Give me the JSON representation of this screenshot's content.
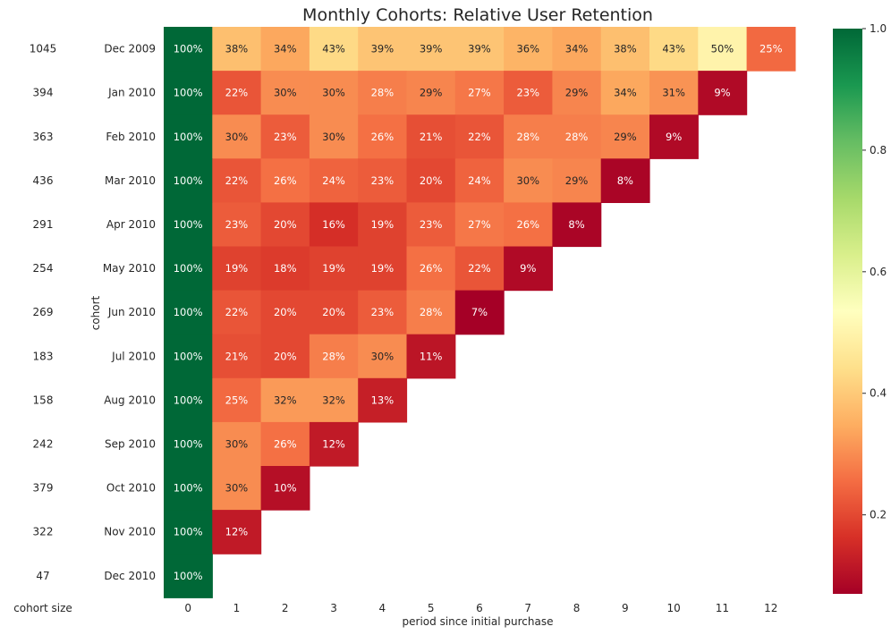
{
  "chart_data": {
    "type": "heatmap",
    "title": "Monthly Cohorts: Relative User Retention",
    "xlabel": "period since initial purchase",
    "ylabel": "cohort",
    "side_table_header": "cohort size",
    "colormap": "RdYlGn",
    "color_range": [
      0.07,
      1.0
    ],
    "colorbar_ticks": [
      "0.2",
      "0.4",
      "0.6",
      "0.8",
      "1.0"
    ],
    "colorbar_tick_values": [
      0.2,
      0.4,
      0.6,
      0.8,
      1.0
    ],
    "x": [
      "0",
      "1",
      "2",
      "3",
      "4",
      "5",
      "6",
      "7",
      "8",
      "9",
      "10",
      "11",
      "12"
    ],
    "cohorts": [
      "Dec 2009",
      "Jan 2010",
      "Feb 2010",
      "Mar 2010",
      "Apr 2010",
      "May 2010",
      "Jun 2010",
      "Jul 2010",
      "Aug 2010",
      "Sep 2010",
      "Oct 2010",
      "Nov 2010",
      "Dec 2010"
    ],
    "cohort_sizes": [
      "1045",
      "394",
      "363",
      "436",
      "291",
      "254",
      "269",
      "183",
      "158",
      "242",
      "379",
      "322",
      "47"
    ],
    "retention": [
      [
        1.0,
        0.38,
        0.34,
        0.43,
        0.39,
        0.39,
        0.39,
        0.36,
        0.34,
        0.38,
        0.43,
        0.5,
        0.25
      ],
      [
        1.0,
        0.22,
        0.3,
        0.3,
        0.28,
        0.29,
        0.27,
        0.23,
        0.29,
        0.34,
        0.31,
        0.09
      ],
      [
        1.0,
        0.3,
        0.23,
        0.3,
        0.26,
        0.21,
        0.22,
        0.28,
        0.28,
        0.29,
        0.09
      ],
      [
        1.0,
        0.22,
        0.26,
        0.24,
        0.23,
        0.2,
        0.24,
        0.3,
        0.29,
        0.08
      ],
      [
        1.0,
        0.23,
        0.2,
        0.16,
        0.19,
        0.23,
        0.27,
        0.26,
        0.08
      ],
      [
        1.0,
        0.19,
        0.18,
        0.19,
        0.19,
        0.26,
        0.22,
        0.09
      ],
      [
        1.0,
        0.22,
        0.2,
        0.2,
        0.23,
        0.28,
        0.07
      ],
      [
        1.0,
        0.21,
        0.2,
        0.28,
        0.3,
        0.11
      ],
      [
        1.0,
        0.25,
        0.32,
        0.32,
        0.13
      ],
      [
        1.0,
        0.3,
        0.26,
        0.12
      ],
      [
        1.0,
        0.3,
        0.1
      ],
      [
        1.0,
        0.12
      ],
      [
        1.0
      ]
    ]
  }
}
